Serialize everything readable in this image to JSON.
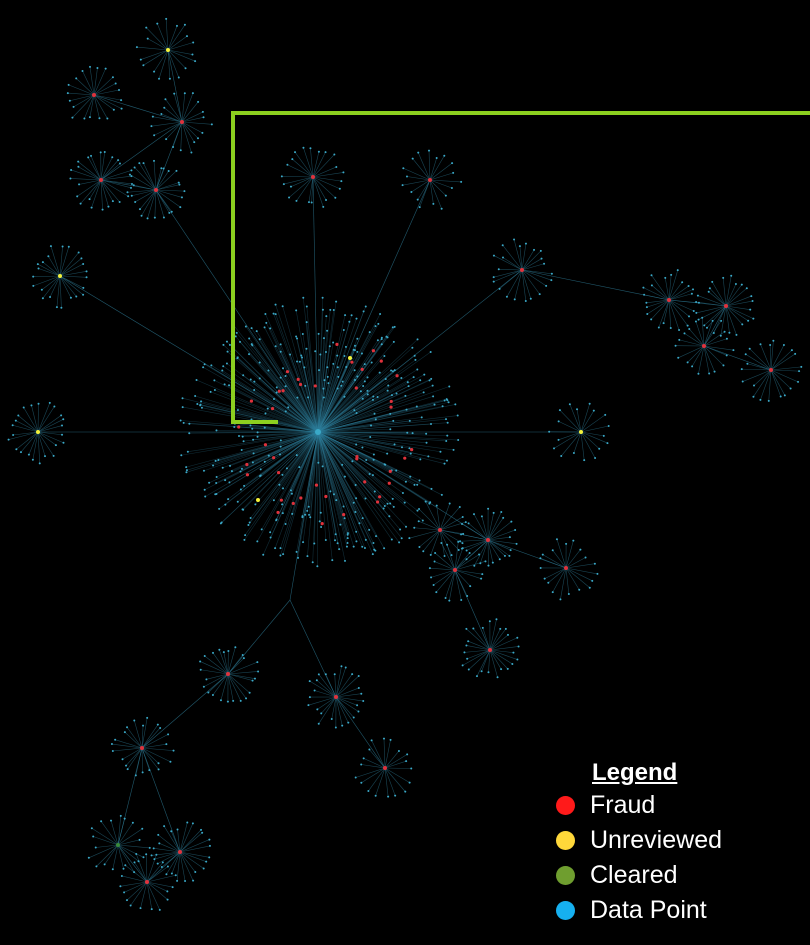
{
  "legend": {
    "title": "Legend",
    "items": [
      {
        "label": "Fraud",
        "color": "#ff1a1a",
        "icon": "red-dot-icon"
      },
      {
        "label": "Unreviewed",
        "color": "#ffd83a",
        "icon": "yellow-dot-icon"
      },
      {
        "label": "Cleared",
        "color": "#6f9e2f",
        "icon": "green-dot-icon"
      },
      {
        "label": "Data Point",
        "color": "#16b0f0",
        "icon": "blue-dot-icon"
      }
    ]
  },
  "colors": {
    "background": "#000000",
    "edge": "#2f7f9a",
    "highlight": "#8ccf1f",
    "fraud": "#e0323c",
    "unreviewed": "#f4f23a",
    "cleared": "#3a8a3a",
    "data_point": "#3aa9c8"
  }
}
